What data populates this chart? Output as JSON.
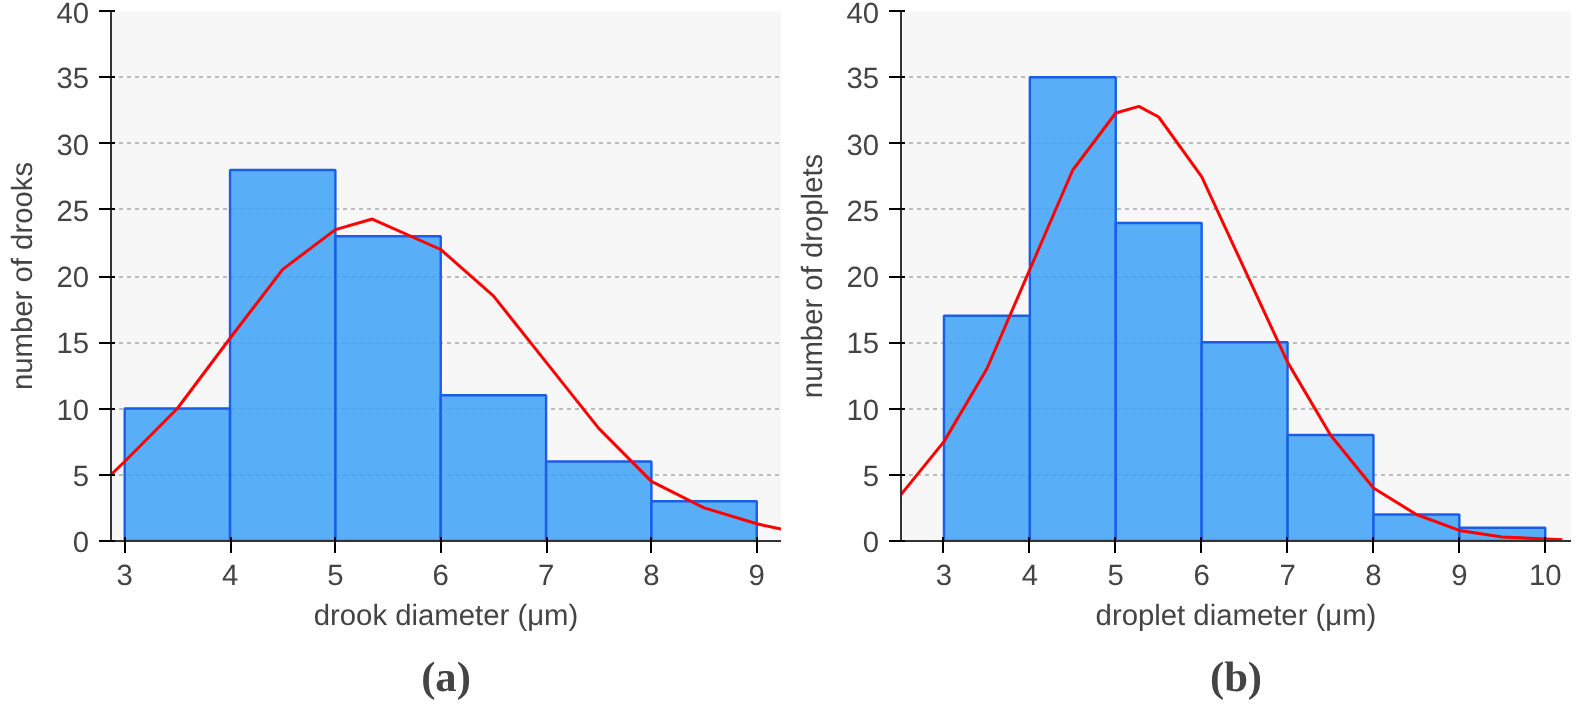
{
  "chart_data": [
    {
      "type": "histogram",
      "xlabel": "drook diameter (μm)",
      "ylabel": "number of drooks",
      "annotations": [
        "(a)"
      ],
      "bins": [
        3,
        4,
        5,
        6,
        7,
        8,
        9
      ],
      "values": [
        10,
        28,
        23,
        11,
        6,
        3
      ],
      "color": "#3da2f7",
      "xlim": [
        2.87,
        9.23
      ],
      "ylim": [
        0,
        40
      ],
      "xticks": [
        3,
        4,
        5,
        6,
        7,
        8,
        9
      ],
      "yticks": [
        0,
        5,
        10,
        15,
        20,
        25,
        30,
        35,
        40
      ],
      "grid": "y",
      "series": [
        {
          "type": "line",
          "color": "#ff0000",
          "x": [
            2.87,
            3,
            3.5,
            4,
            4.5,
            5,
            5.35,
            6,
            6.5,
            7,
            7.5,
            8,
            8.5,
            9,
            9.23
          ],
          "values": [
            5,
            6,
            10,
            15.3,
            20.5,
            23.5,
            24.3,
            22,
            18.5,
            13.5,
            8.5,
            4.5,
            2.5,
            1.3,
            0.9
          ]
        }
      ]
    },
    {
      "type": "histogram",
      "xlabel": "droplet diameter (μm)",
      "ylabel": "number of droplets",
      "annotations": [
        "(b)"
      ],
      "bins": [
        3,
        4,
        5,
        6,
        7,
        8,
        9,
        10
      ],
      "values": [
        17,
        35,
        24,
        15,
        8,
        2,
        1
      ],
      "color": "#3da2f7",
      "xlim": [
        2.5,
        10.3
      ],
      "ylim": [
        0,
        40
      ],
      "xticks": [
        3,
        4,
        5,
        6,
        7,
        8,
        9,
        10
      ],
      "yticks": [
        0,
        5,
        10,
        15,
        20,
        25,
        30,
        35,
        40
      ],
      "grid": "y",
      "series": [
        {
          "type": "line",
          "color": "#ff0000",
          "x": [
            2.5,
            3,
            3.5,
            4,
            4.5,
            5,
            5.27,
            5.5,
            6,
            6.5,
            7,
            7.5,
            8,
            8.5,
            9,
            9.5,
            10.2
          ],
          "values": [
            3.5,
            7.5,
            13,
            20.5,
            28,
            32.3,
            32.8,
            32,
            27.5,
            20.5,
            13.5,
            8,
            4,
            2,
            0.8,
            0.3,
            0.1
          ]
        }
      ]
    }
  ]
}
